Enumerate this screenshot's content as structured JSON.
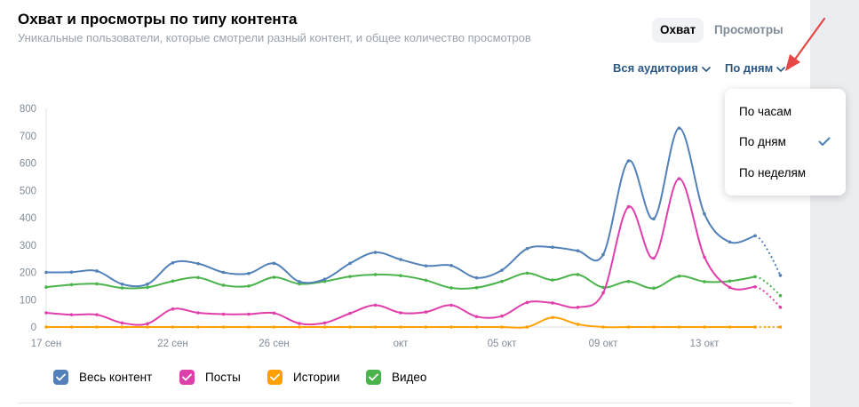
{
  "header": {
    "title": "Охват и просмотры по типу контента",
    "subtitle": "Уникальные пользователи, которые смотрели разный контент, и общее количество просмотров"
  },
  "tabs": [
    {
      "label": "Охват",
      "active": true
    },
    {
      "label": "Просмотры",
      "active": false
    }
  ],
  "filters": {
    "audience": "Вся аудитория",
    "period": "По дням"
  },
  "dropdown": {
    "items": [
      "По часам",
      "По дням",
      "По неделям"
    ],
    "selected": "По дням"
  },
  "colors": {
    "all": "#5181b8",
    "posts": "#e03fab",
    "stories": "#ffa000",
    "video": "#4bb34b",
    "link": "#2a5885",
    "arrow": "#e64646"
  },
  "chart_data": {
    "type": "line",
    "ylim": [
      0,
      800
    ],
    "yticks": [
      "800",
      "700",
      "600",
      "500",
      "400",
      "300",
      "200",
      "100",
      "0"
    ],
    "xtick_labels": [
      {
        "index": 0,
        "label": "17 сен"
      },
      {
        "index": 5,
        "label": "22 сен"
      },
      {
        "index": 9,
        "label": "26 сен"
      },
      {
        "index": 14,
        "label": "окт"
      },
      {
        "index": 18,
        "label": "05 окт"
      },
      {
        "index": 22,
        "label": "09 окт"
      },
      {
        "index": 26,
        "label": "13 окт"
      }
    ],
    "series": [
      {
        "name": "Весь контент",
        "color_key": "all",
        "values": [
          200,
          201,
          205,
          157,
          157,
          235,
          232,
          200,
          196,
          233,
          166,
          175,
          233,
          273,
          247,
          224,
          225,
          180,
          208,
          287,
          292,
          279,
          265,
          608,
          396,
          728,
          414,
          311,
          334,
          189
        ]
      },
      {
        "name": "Посты",
        "color_key": "posts",
        "values": [
          52,
          45,
          45,
          15,
          12,
          66,
          52,
          47,
          47,
          51,
          13,
          15,
          50,
          80,
          52,
          55,
          80,
          38,
          40,
          90,
          88,
          72,
          125,
          440,
          252,
          543,
          256,
          145,
          147,
          72
        ]
      },
      {
        "name": "Истории",
        "color_key": "stories",
        "values": [
          0,
          0,
          0,
          0,
          0,
          0,
          0,
          0,
          0,
          0,
          0,
          0,
          0,
          0,
          0,
          0,
          0,
          0,
          0,
          0,
          35,
          10,
          0,
          0,
          0,
          0,
          0,
          0,
          0,
          0
        ]
      },
      {
        "name": "Видео",
        "color_key": "video",
        "values": [
          146,
          155,
          158,
          143,
          145,
          168,
          181,
          153,
          150,
          182,
          158,
          167,
          185,
          192,
          188,
          171,
          143,
          144,
          167,
          197,
          172,
          192,
          145,
          167,
          142,
          186,
          166,
          168,
          184,
          115
        ]
      }
    ]
  },
  "legend": [
    {
      "label": "Весь контент",
      "color_key": "all"
    },
    {
      "label": "Посты",
      "color_key": "posts"
    },
    {
      "label": "Истории",
      "color_key": "stories"
    },
    {
      "label": "Видео",
      "color_key": "video"
    }
  ]
}
